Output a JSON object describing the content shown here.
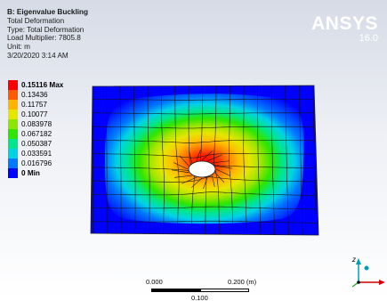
{
  "info": {
    "title": "B: Eigenvalue Buckling",
    "result": "Total Deformation",
    "type": "Type: Total Deformation",
    "load_multiplier": "Load Multiplier: 7805.8",
    "unit": "Unit: m",
    "timestamp": "3/20/2020 3:14 AM"
  },
  "logo": {
    "name": "ANSYS",
    "version": "16.0"
  },
  "legend": [
    {
      "label": "0.15116 Max",
      "color": "#ff0000",
      "bold": true
    },
    {
      "label": "0.13436",
      "color": "#ff5a00",
      "bold": false
    },
    {
      "label": "0.11757",
      "color": "#ffb400",
      "bold": false
    },
    {
      "label": "0.10077",
      "color": "#e6e600",
      "bold": false
    },
    {
      "label": "0.083978",
      "color": "#8ce600",
      "bold": false
    },
    {
      "label": "0.067182",
      "color": "#2ee600",
      "bold": false
    },
    {
      "label": "0.050387",
      "color": "#00e68c",
      "bold": false
    },
    {
      "label": "0.033591",
      "color": "#00d2e6",
      "bold": false
    },
    {
      "label": "0.016796",
      "color": "#0078ff",
      "bold": false
    },
    {
      "label": "0 Min",
      "color": "#0000ff",
      "bold": true
    }
  ],
  "scale_bar": {
    "left": "0.000",
    "right": "0.200 (m)",
    "middle": "0.100"
  },
  "triad": {
    "axis_z": "z"
  }
}
